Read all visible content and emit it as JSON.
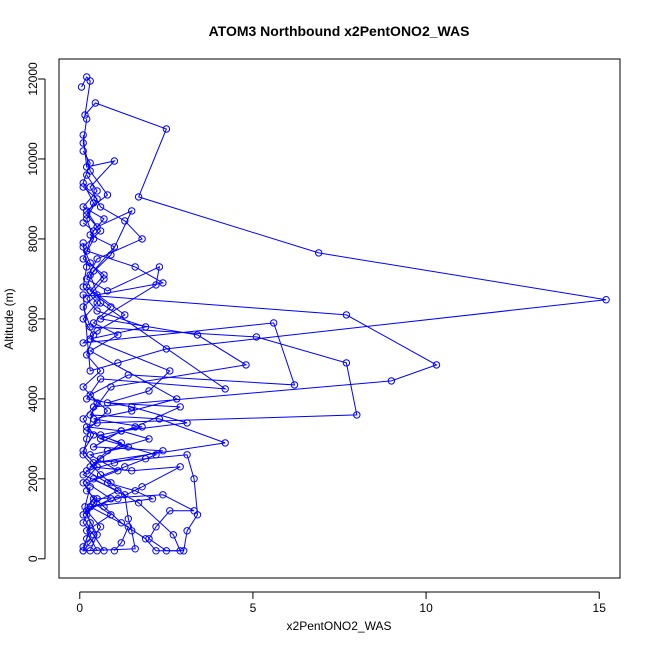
{
  "chart_data": {
    "type": "line",
    "title": "ATOM3 Northbound x2PentONO2_WAS",
    "xlabel": "x2PentONO2_WAS",
    "ylabel": "Altitude (m)",
    "xlim": [
      -0.6,
      15.6
    ],
    "ylim": [
      -480,
      12500
    ],
    "xticks": [
      0,
      5,
      10,
      15
    ],
    "yticks": [
      0,
      2000,
      4000,
      6000,
      8000,
      10000,
      12000
    ],
    "grid": false,
    "legend": "none",
    "marker": "open-circle",
    "color": "#0000ff",
    "series": [
      {
        "points": [
          [
            0.05,
            11800
          ],
          [
            0.2,
            12050
          ],
          [
            0.3,
            11950
          ],
          [
            0.15,
            11100
          ],
          [
            0.45,
            11400
          ],
          [
            2.5,
            10750
          ],
          [
            1.7,
            9050
          ],
          [
            6.9,
            7650
          ],
          [
            15.2,
            6480
          ],
          [
            2.5,
            5250
          ],
          [
            1.1,
            4900
          ],
          [
            0.3,
            4700
          ],
          [
            0.1,
            6600
          ],
          [
            7.7,
            6100
          ],
          [
            10.3,
            4850
          ],
          [
            9.0,
            4450
          ],
          [
            0.4,
            3800
          ],
          [
            0.2,
            3000
          ],
          [
            0.1,
            2600
          ],
          [
            0.6,
            2100
          ],
          [
            0.9,
            1900
          ],
          [
            1.3,
            1600
          ],
          [
            1.4,
            1000
          ],
          [
            1.5,
            700
          ],
          [
            1.6,
            250
          ],
          [
            0.1,
            200
          ],
          [
            0.2,
            500
          ],
          [
            0.3,
            900
          ],
          [
            0.15,
            1300
          ],
          [
            0.3,
            1800
          ]
        ]
      },
      {
        "points": [
          [
            0.1,
            10600
          ],
          [
            0.2,
            9800
          ],
          [
            1.0,
            9950
          ],
          [
            0.3,
            9300
          ],
          [
            0.6,
            8800
          ],
          [
            1.3,
            8450
          ],
          [
            1.8,
            8000
          ],
          [
            0.5,
            7500
          ],
          [
            0.2,
            7000
          ],
          [
            0.8,
            6700
          ],
          [
            2.3,
            7300
          ],
          [
            2.2,
            6850
          ],
          [
            0.6,
            6000
          ],
          [
            3.4,
            5600
          ],
          [
            4.8,
            4850
          ],
          [
            0.9,
            4300
          ],
          [
            0.3,
            3600
          ],
          [
            2.3,
            3500
          ],
          [
            4.2,
            2900
          ],
          [
            0.4,
            2400
          ],
          [
            1.9,
            2500
          ],
          [
            3.1,
            2600
          ],
          [
            3.3,
            2000
          ],
          [
            3.4,
            1100
          ],
          [
            3.1,
            700
          ],
          [
            3.0,
            200
          ],
          [
            2.5,
            200
          ],
          [
            2.0,
            500
          ],
          [
            2.2,
            800
          ],
          [
            2.6,
            1200
          ],
          [
            3.3,
            1200
          ],
          [
            2.4,
            1600
          ],
          [
            0.5,
            1500
          ],
          [
            0.2,
            1100
          ],
          [
            0.5,
            600
          ],
          [
            0.3,
            200
          ]
        ]
      },
      {
        "points": [
          [
            0.1,
            8400
          ],
          [
            0.4,
            8200
          ],
          [
            0.2,
            7700
          ],
          [
            1.6,
            7300
          ],
          [
            2.4,
            6900
          ],
          [
            0.5,
            6600
          ],
          [
            0.1,
            6300
          ],
          [
            0.3,
            5800
          ],
          [
            5.1,
            5550
          ],
          [
            7.7,
            4900
          ],
          [
            8.0,
            3600
          ],
          [
            0.5,
            3400
          ],
          [
            0.2,
            3300
          ],
          [
            1.2,
            3200
          ],
          [
            2.0,
            3000
          ],
          [
            0.8,
            2700
          ],
          [
            0.3,
            2300
          ],
          [
            1.5,
            2200
          ],
          [
            2.9,
            2300
          ],
          [
            1.8,
            1800
          ],
          [
            1.1,
            1500
          ],
          [
            0.3,
            1300
          ],
          [
            0.1,
            900
          ],
          [
            0.4,
            600
          ],
          [
            0.7,
            200
          ]
        ]
      },
      {
        "points": [
          [
            0.2,
            9600
          ],
          [
            0.5,
            9200
          ],
          [
            0.1,
            8800
          ],
          [
            0.7,
            8500
          ],
          [
            0.3,
            8100
          ],
          [
            1.0,
            7800
          ],
          [
            0.4,
            7200
          ],
          [
            0.2,
            6800
          ],
          [
            1.3,
            6100
          ],
          [
            0.5,
            5700
          ],
          [
            0.1,
            5400
          ],
          [
            5.6,
            5900
          ],
          [
            6.2,
            4350
          ],
          [
            1.4,
            4600
          ],
          [
            0.3,
            4100
          ],
          [
            0.8,
            3700
          ],
          [
            0.2,
            3200
          ],
          [
            1.2,
            2900
          ],
          [
            0.6,
            2500
          ],
          [
            0.1,
            2100
          ],
          [
            1.1,
            1700
          ],
          [
            0.4,
            1400
          ],
          [
            0.9,
            1100
          ],
          [
            0.2,
            700
          ],
          [
            0.5,
            200
          ]
        ]
      },
      {
        "points": [
          [
            0.1,
            10200
          ],
          [
            0.3,
            9900
          ],
          [
            0.1,
            9400
          ],
          [
            0.4,
            8900
          ],
          [
            0.2,
            8600
          ],
          [
            0.6,
            8200
          ],
          [
            0.1,
            7800
          ],
          [
            0.3,
            7400
          ],
          [
            0.7,
            7000
          ],
          [
            0.2,
            6500
          ],
          [
            0.5,
            6200
          ],
          [
            1.9,
            5800
          ],
          [
            0.3,
            5500
          ],
          [
            2.6,
            4700
          ],
          [
            2.0,
            4200
          ],
          [
            0.8,
            3900
          ],
          [
            2.9,
            3800
          ],
          [
            1.6,
            3300
          ],
          [
            0.6,
            3000
          ],
          [
            2.2,
            2600
          ],
          [
            1.3,
            2300
          ],
          [
            0.4,
            2000
          ],
          [
            1.7,
            1400
          ],
          [
            2.7,
            600
          ],
          [
            2.9,
            200
          ],
          [
            2.2,
            200
          ],
          [
            1.9,
            500
          ],
          [
            1.2,
            900
          ],
          [
            0.7,
            1300
          ],
          [
            0.2,
            1700
          ]
        ]
      },
      {
        "points": [
          [
            0.2,
            11000
          ],
          [
            0.1,
            10400
          ],
          [
            0.3,
            9700
          ],
          [
            0.8,
            9100
          ],
          [
            0.2,
            8700
          ],
          [
            0.5,
            8300
          ],
          [
            1.5,
            8700
          ],
          [
            0.9,
            7600
          ],
          [
            0.3,
            7100
          ],
          [
            0.6,
            6400
          ],
          [
            4.2,
            4250
          ],
          [
            0.6,
            4500
          ],
          [
            0.2,
            4000
          ],
          [
            1.5,
            3800
          ],
          [
            3.1,
            3400
          ],
          [
            1.2,
            3200
          ],
          [
            0.4,
            2800
          ],
          [
            2.4,
            2700
          ],
          [
            1.0,
            2400
          ],
          [
            0.2,
            2200
          ],
          [
            0.8,
            1900
          ],
          [
            1.6,
            1700
          ],
          [
            2.1,
            1500
          ],
          [
            0.3,
            1300
          ],
          [
            1.4,
            800
          ],
          [
            1.2,
            400
          ],
          [
            1.0,
            200
          ]
        ]
      },
      {
        "points": [
          [
            0.1,
            9300
          ],
          [
            0.5,
            9000
          ],
          [
            0.2,
            8500
          ],
          [
            0.4,
            8000
          ],
          [
            0.1,
            7500
          ],
          [
            0.7,
            7100
          ],
          [
            0.3,
            6700
          ],
          [
            0.9,
            6300
          ],
          [
            0.4,
            5900
          ],
          [
            1.1,
            5600
          ],
          [
            0.3,
            5200
          ],
          [
            2.8,
            4000
          ],
          [
            1.5,
            3700
          ],
          [
            0.4,
            3500
          ],
          [
            1.8,
            3300
          ],
          [
            0.6,
            3100
          ],
          [
            1.4,
            2800
          ],
          [
            0.3,
            2600
          ],
          [
            1.1,
            2200
          ],
          [
            0.2,
            1900
          ],
          [
            0.9,
            1500
          ],
          [
            0.2,
            1200
          ],
          [
            0.6,
            800
          ],
          [
            0.3,
            400
          ],
          [
            0.1,
            200
          ]
        ]
      },
      {
        "points": [
          [
            0.1,
            7900
          ],
          [
            0.2,
            7300
          ],
          [
            0.1,
            6800
          ],
          [
            0.5,
            6400
          ],
          [
            0.1,
            6000
          ],
          [
            0.4,
            5600
          ],
          [
            0.2,
            5100
          ],
          [
            0.6,
            4700
          ],
          [
            0.1,
            4300
          ],
          [
            0.5,
            3900
          ],
          [
            0.1,
            3500
          ],
          [
            0.4,
            3100
          ],
          [
            0.1,
            2700
          ],
          [
            0.5,
            2300
          ],
          [
            0.1,
            1900
          ],
          [
            0.4,
            1500
          ],
          [
            0.1,
            1100
          ],
          [
            0.3,
            700
          ],
          [
            0.1,
            300
          ]
        ]
      }
    ]
  }
}
